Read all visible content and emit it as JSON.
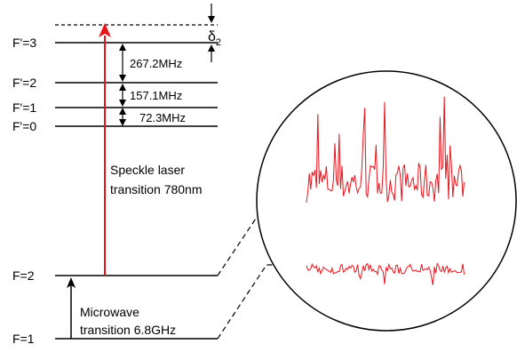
{
  "excited_levels": [
    {
      "label": "F'=3"
    },
    {
      "label": "F'=2"
    },
    {
      "label": "F'=1"
    },
    {
      "label": "F'=0"
    }
  ],
  "ground_levels": [
    {
      "label": "F=2"
    },
    {
      "label": "F=1"
    }
  ],
  "splittings": [
    "267.2MHz",
    "157.1MHz",
    "72.3MHz"
  ],
  "detuning_label": {
    "symbol": "δ",
    "subscript": "2"
  },
  "laser_transition": {
    "line1": "Speckle laser",
    "line2": "transition 780nm",
    "color": "#e8141c"
  },
  "microwave_transition": {
    "line1": "Microwave",
    "line2": "transition 6.8GHz",
    "color": "#000000"
  },
  "inset": {
    "trace_color": "#e8141c",
    "traces": [
      "upper speckle signal",
      "lower speckle signal"
    ]
  }
}
